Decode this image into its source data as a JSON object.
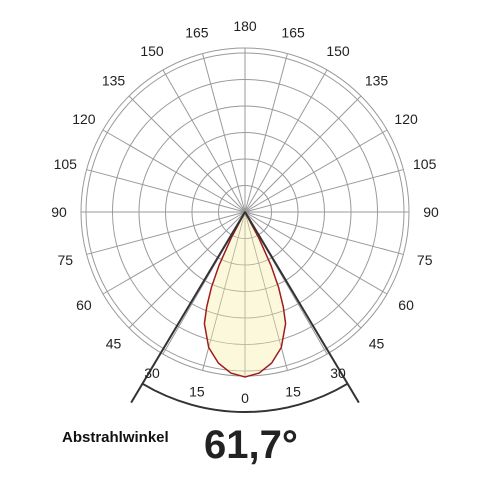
{
  "chart_data": {
    "type": "polar",
    "angle_tick_labels": [
      "0",
      "15",
      "15",
      "30",
      "30",
      "45",
      "45",
      "60",
      "60",
      "75",
      "75",
      "90",
      "90",
      "105",
      "105",
      "120",
      "120",
      "135",
      "135",
      "150",
      "150",
      "165",
      "165",
      "180"
    ],
    "beam_angle": 61.7,
    "beam_label": "Abstrahlwinkel",
    "beam_value_text": "61,7°",
    "rings": 6,
    "lobe": {
      "angles_deg": [
        0,
        5,
        10,
        15,
        20,
        22,
        24,
        26,
        28,
        30
      ],
      "radius_fraction": [
        1.0,
        0.98,
        0.93,
        0.85,
        0.72,
        0.62,
        0.5,
        0.36,
        0.18,
        0.0
      ]
    },
    "colors": {
      "lobe_fill": "#fbf8dc",
      "lobe_stroke": "#a01c1c",
      "grid": "#9a9a9a",
      "beam_lines": "#333333"
    }
  }
}
